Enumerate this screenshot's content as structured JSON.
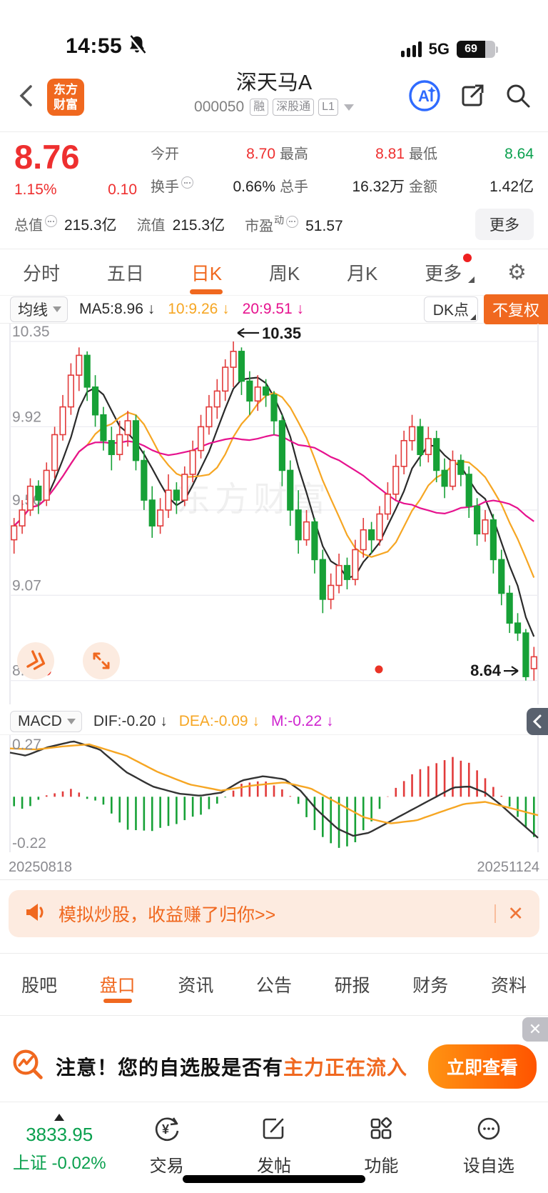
{
  "colors": {
    "accent_orange": "#f0681f",
    "up_red": "#e23b3b",
    "down_green": "#17a137",
    "text_red": "#ee2f2f",
    "text_green": "#0aa04e",
    "ma5_black": "#2a2a2a",
    "ma10_orange": "#f6a623",
    "ma20_magenta": "#e6128e",
    "macd_m_purple": "#cf24cf",
    "axis_gray": "#8e8e93"
  },
  "status_bar": {
    "time": "14:55",
    "network": "5G",
    "battery": "69"
  },
  "header": {
    "logo_line1": "东方",
    "logo_line2": "财富",
    "title": "深天马A",
    "code": "000050",
    "badges": [
      "融",
      "深股通",
      "L1"
    ],
    "ai_label": "Ai"
  },
  "quote": {
    "price": "8.76",
    "change_pct": "1.15%",
    "change_amt": "0.10",
    "grid": [
      {
        "label": "今开",
        "value": "8.70",
        "color": "red"
      },
      {
        "label": "最高",
        "value": "8.81",
        "color": "red"
      },
      {
        "label": "最低",
        "value": "8.64",
        "color": "green"
      },
      {
        "label": "换手",
        "value": "0.66%",
        "color": "dark",
        "info": true
      },
      {
        "label": "总手",
        "value": "16.32万",
        "color": "dark"
      },
      {
        "label": "金额",
        "value": "1.42亿",
        "color": "dark"
      }
    ],
    "bottom": [
      {
        "label": "总值",
        "value": "215.3亿",
        "info": true
      },
      {
        "label": "流值",
        "value": "215.3亿"
      },
      {
        "label": "市盈",
        "sup": "动",
        "value": "51.57",
        "info": true
      }
    ],
    "more_label": "更多"
  },
  "period_tabs": {
    "items": [
      {
        "label": "分时"
      },
      {
        "label": "五日"
      },
      {
        "label": "日K",
        "active": true
      },
      {
        "label": "周K"
      },
      {
        "label": "月K"
      },
      {
        "label": "更多",
        "dot": true,
        "caret": true
      }
    ]
  },
  "ma_bar": {
    "selector_label": "均线",
    "items": [
      {
        "text": "MA5:8.96",
        "arrow": "↓",
        "color": "#2a2a2a"
      },
      {
        "text": "10:9.26",
        "arrow": "↓",
        "color": "#f6a623"
      },
      {
        "text": "20:9.51",
        "arrow": "↓",
        "color": "#e6128e"
      }
    ],
    "dk_label": "DK点",
    "adjust_label": "不复权"
  },
  "macd_bar": {
    "selector_label": "MACD",
    "items": [
      {
        "text": "DIF:-0.20",
        "arrow": "↓",
        "color": "#333333"
      },
      {
        "text": "DEA:-0.09",
        "arrow": "↓",
        "color": "#f6a623"
      },
      {
        "text": "M:-0.22",
        "arrow": "↓",
        "color": "#cf24cf"
      }
    ]
  },
  "chart_data": [
    {
      "type": "candlestick",
      "title": "深天马A 日K 不复权",
      "y_ticks": [
        "10.35",
        "9.92",
        "9.50",
        "9.07",
        "8.64"
      ],
      "ylim": [
        8.52,
        10.44
      ],
      "watermark": "东方财富",
      "high_annotation": {
        "index": 27,
        "text": "10.35"
      },
      "last_annotation": {
        "text": "8.64"
      },
      "legend": [
        "MA5",
        "MA10",
        "MA20"
      ],
      "ma_periods": [
        5,
        10,
        20
      ],
      "candles": [
        [
          9.35,
          9.46,
          9.28,
          9.42
        ],
        [
          9.42,
          9.55,
          9.38,
          9.5
        ],
        [
          9.5,
          9.66,
          9.47,
          9.62
        ],
        [
          9.62,
          9.65,
          9.48,
          9.55
        ],
        [
          9.55,
          9.74,
          9.52,
          9.7
        ],
        [
          9.7,
          9.92,
          9.66,
          9.88
        ],
        [
          9.88,
          10.08,
          9.85,
          10.02
        ],
        [
          10.02,
          10.24,
          9.98,
          10.18
        ],
        [
          10.18,
          10.32,
          10.1,
          10.28
        ],
        [
          10.28,
          10.3,
          10.05,
          10.12
        ],
        [
          10.12,
          10.18,
          9.92,
          9.98
        ],
        [
          9.98,
          10.02,
          9.8,
          9.85
        ],
        [
          9.85,
          9.92,
          9.7,
          9.78
        ],
        [
          9.78,
          9.95,
          9.75,
          9.88
        ],
        [
          9.88,
          10.0,
          9.82,
          9.95
        ],
        [
          9.95,
          9.98,
          9.7,
          9.75
        ],
        [
          9.75,
          9.8,
          9.5,
          9.55
        ],
        [
          9.55,
          9.62,
          9.36,
          9.42
        ],
        [
          9.42,
          9.56,
          9.38,
          9.5
        ],
        [
          9.5,
          9.68,
          9.46,
          9.6
        ],
        [
          9.6,
          9.64,
          9.48,
          9.55
        ],
        [
          9.55,
          9.72,
          9.52,
          9.68
        ],
        [
          9.68,
          9.85,
          9.64,
          9.8
        ],
        [
          9.8,
          9.98,
          9.76,
          9.92
        ],
        [
          9.92,
          10.08,
          9.88,
          10.02
        ],
        [
          10.02,
          10.16,
          9.96,
          10.1
        ],
        [
          10.1,
          10.26,
          10.05,
          10.22
        ],
        [
          10.22,
          10.35,
          10.12,
          10.3
        ],
        [
          10.3,
          10.32,
          10.08,
          10.15
        ],
        [
          10.15,
          10.2,
          9.98,
          10.05
        ],
        [
          10.05,
          10.18,
          10.0,
          10.12
        ],
        [
          10.12,
          10.16,
          10.02,
          10.08
        ],
        [
          10.08,
          10.1,
          9.88,
          9.95
        ],
        [
          9.95,
          9.98,
          9.62,
          9.7
        ],
        [
          9.7,
          9.75,
          9.42,
          9.5
        ],
        [
          9.5,
          9.6,
          9.28,
          9.35
        ],
        [
          9.35,
          9.5,
          9.32,
          9.44
        ],
        [
          9.44,
          9.46,
          9.18,
          9.25
        ],
        [
          9.25,
          9.3,
          8.98,
          9.05
        ],
        [
          9.05,
          9.18,
          9.0,
          9.12
        ],
        [
          9.12,
          9.28,
          9.08,
          9.22
        ],
        [
          9.22,
          9.26,
          9.1,
          9.15
        ],
        [
          9.15,
          9.35,
          9.12,
          9.3
        ],
        [
          9.3,
          9.46,
          9.26,
          9.4
        ],
        [
          9.4,
          9.44,
          9.28,
          9.35
        ],
        [
          9.35,
          9.52,
          9.32,
          9.48
        ],
        [
          9.48,
          9.64,
          9.45,
          9.58
        ],
        [
          9.58,
          9.78,
          9.55,
          9.72
        ],
        [
          9.72,
          9.9,
          9.68,
          9.85
        ],
        [
          9.85,
          9.98,
          9.8,
          9.92
        ],
        [
          9.92,
          9.96,
          9.72,
          9.78
        ],
        [
          9.78,
          9.92,
          9.74,
          9.86
        ],
        [
          9.86,
          9.9,
          9.64,
          9.7
        ],
        [
          9.7,
          9.76,
          9.56,
          9.62
        ],
        [
          9.62,
          9.8,
          9.6,
          9.75
        ],
        [
          9.75,
          9.78,
          9.62,
          9.68
        ],
        [
          9.68,
          9.72,
          9.46,
          9.52
        ],
        [
          9.52,
          9.56,
          9.32,
          9.38
        ],
        [
          9.38,
          9.5,
          9.34,
          9.45
        ],
        [
          9.45,
          9.48,
          9.18,
          9.25
        ],
        [
          9.25,
          9.3,
          9.02,
          9.08
        ],
        [
          9.08,
          9.12,
          8.88,
          8.93
        ],
        [
          8.93,
          8.98,
          8.84,
          8.88
        ],
        [
          8.88,
          8.9,
          8.64,
          8.66
        ],
        [
          8.7,
          8.81,
          8.64,
          8.76
        ]
      ]
    },
    {
      "type": "macd",
      "ylim": [
        -0.27,
        0.3
      ],
      "y_top_label": "0.27",
      "y_bottom_label": "-0.22",
      "x_labels": [
        "20250818",
        "20251124"
      ],
      "summary": {
        "dif": "-0.20",
        "dea": "-0.09",
        "m": "-0.22"
      },
      "dif_points": [
        [
          0,
          0.215
        ],
        [
          0.03,
          0.2
        ],
        [
          0.07,
          0.24
        ],
        [
          0.12,
          0.27
        ],
        [
          0.17,
          0.23
        ],
        [
          0.22,
          0.12
        ],
        [
          0.27,
          0.05
        ],
        [
          0.32,
          0.015
        ],
        [
          0.36,
          0.005
        ],
        [
          0.4,
          0.02
        ],
        [
          0.44,
          0.08
        ],
        [
          0.48,
          0.1
        ],
        [
          0.52,
          0.085
        ],
        [
          0.55,
          0.03
        ],
        [
          0.58,
          -0.06
        ],
        [
          0.62,
          -0.155
        ],
        [
          0.65,
          -0.19
        ],
        [
          0.68,
          -0.175
        ],
        [
          0.72,
          -0.12
        ],
        [
          0.76,
          -0.065
        ],
        [
          0.8,
          -0.01
        ],
        [
          0.84,
          0.045
        ],
        [
          0.87,
          0.05
        ],
        [
          0.9,
          0.02
        ],
        [
          0.93,
          -0.04
        ],
        [
          0.96,
          -0.11
        ],
        [
          1,
          -0.2
        ]
      ],
      "dea_points": [
        [
          0,
          0.235
        ],
        [
          0.05,
          0.23
        ],
        [
          0.1,
          0.245
        ],
        [
          0.15,
          0.255
        ],
        [
          0.22,
          0.2
        ],
        [
          0.28,
          0.12
        ],
        [
          0.34,
          0.06
        ],
        [
          0.4,
          0.03
        ],
        [
          0.46,
          0.055
        ],
        [
          0.52,
          0.07
        ],
        [
          0.57,
          0.04
        ],
        [
          0.62,
          -0.03
        ],
        [
          0.67,
          -0.1
        ],
        [
          0.72,
          -0.13
        ],
        [
          0.77,
          -0.115
        ],
        [
          0.82,
          -0.07
        ],
        [
          0.86,
          -0.035
        ],
        [
          0.9,
          -0.025
        ],
        [
          0.94,
          -0.05
        ],
        [
          1,
          -0.09
        ]
      ]
    }
  ],
  "banner": {
    "text": "模拟炒股，收益赚了归你>>"
  },
  "sub_tabs": {
    "items": [
      "股吧",
      "盘口",
      "资讯",
      "公告",
      "研报",
      "财务",
      "资料"
    ],
    "active_index": 1
  },
  "notice": {
    "text_black": "注意！您的自选股是否有",
    "text_orange": "主力正在流入",
    "button": "立即查看"
  },
  "bottom_nav": {
    "index_value": "3833.95",
    "index_label": "上证 -0.02%",
    "items": [
      "交易",
      "发帖",
      "功能",
      "设自选"
    ]
  }
}
